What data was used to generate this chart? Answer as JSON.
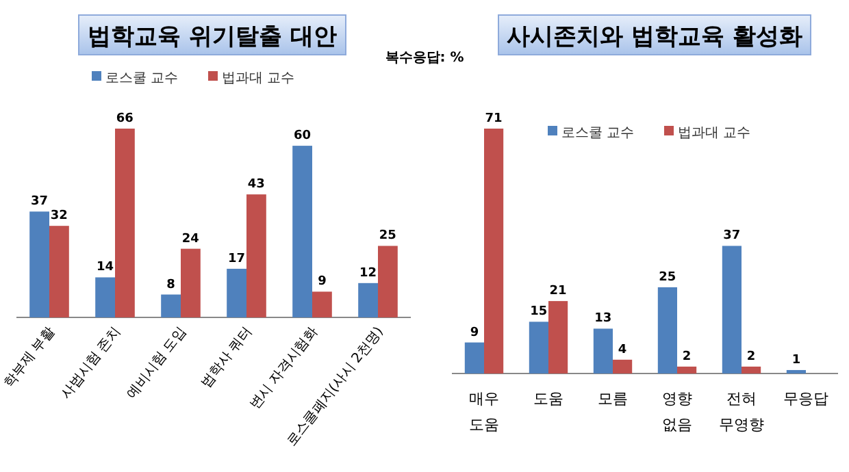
{
  "chart_data": [
    {
      "type": "bar",
      "title": "법학교육 위기탈출 대안",
      "categories": [
        "학부제 부활",
        "사법시험 존치",
        "예비시험 도입",
        "법학사 쿼터",
        "변시 자격시험화",
        "로스쿨폐지(사시 2천명)"
      ],
      "series": [
        {
          "name": "로스쿨 교수",
          "color": "#4f81bd",
          "values": [
            37,
            14,
            8,
            17,
            60,
            12
          ]
        },
        {
          "name": "법과대 교수",
          "color": "#c0504d",
          "values": [
            32,
            66,
            24,
            43,
            9,
            25
          ]
        }
      ],
      "data_labels": true,
      "legend": "top",
      "annotations": [
        "복수응답: %"
      ]
    },
    {
      "type": "bar",
      "title": "사시존치와 법학교육 활성화",
      "categories": [
        "매우 도움",
        "도움",
        "모름",
        "영향 없음",
        "전혀 무영향",
        "무응답"
      ],
      "series": [
        {
          "name": "로스쿨 교수",
          "color": "#4f81bd",
          "values": [
            9,
            15,
            13,
            25,
            37,
            1
          ]
        },
        {
          "name": "법과대 교수",
          "color": "#c0504d",
          "values": [
            71,
            21,
            4,
            2,
            2,
            null
          ]
        }
      ],
      "data_labels": true,
      "legend": "top right"
    }
  ]
}
